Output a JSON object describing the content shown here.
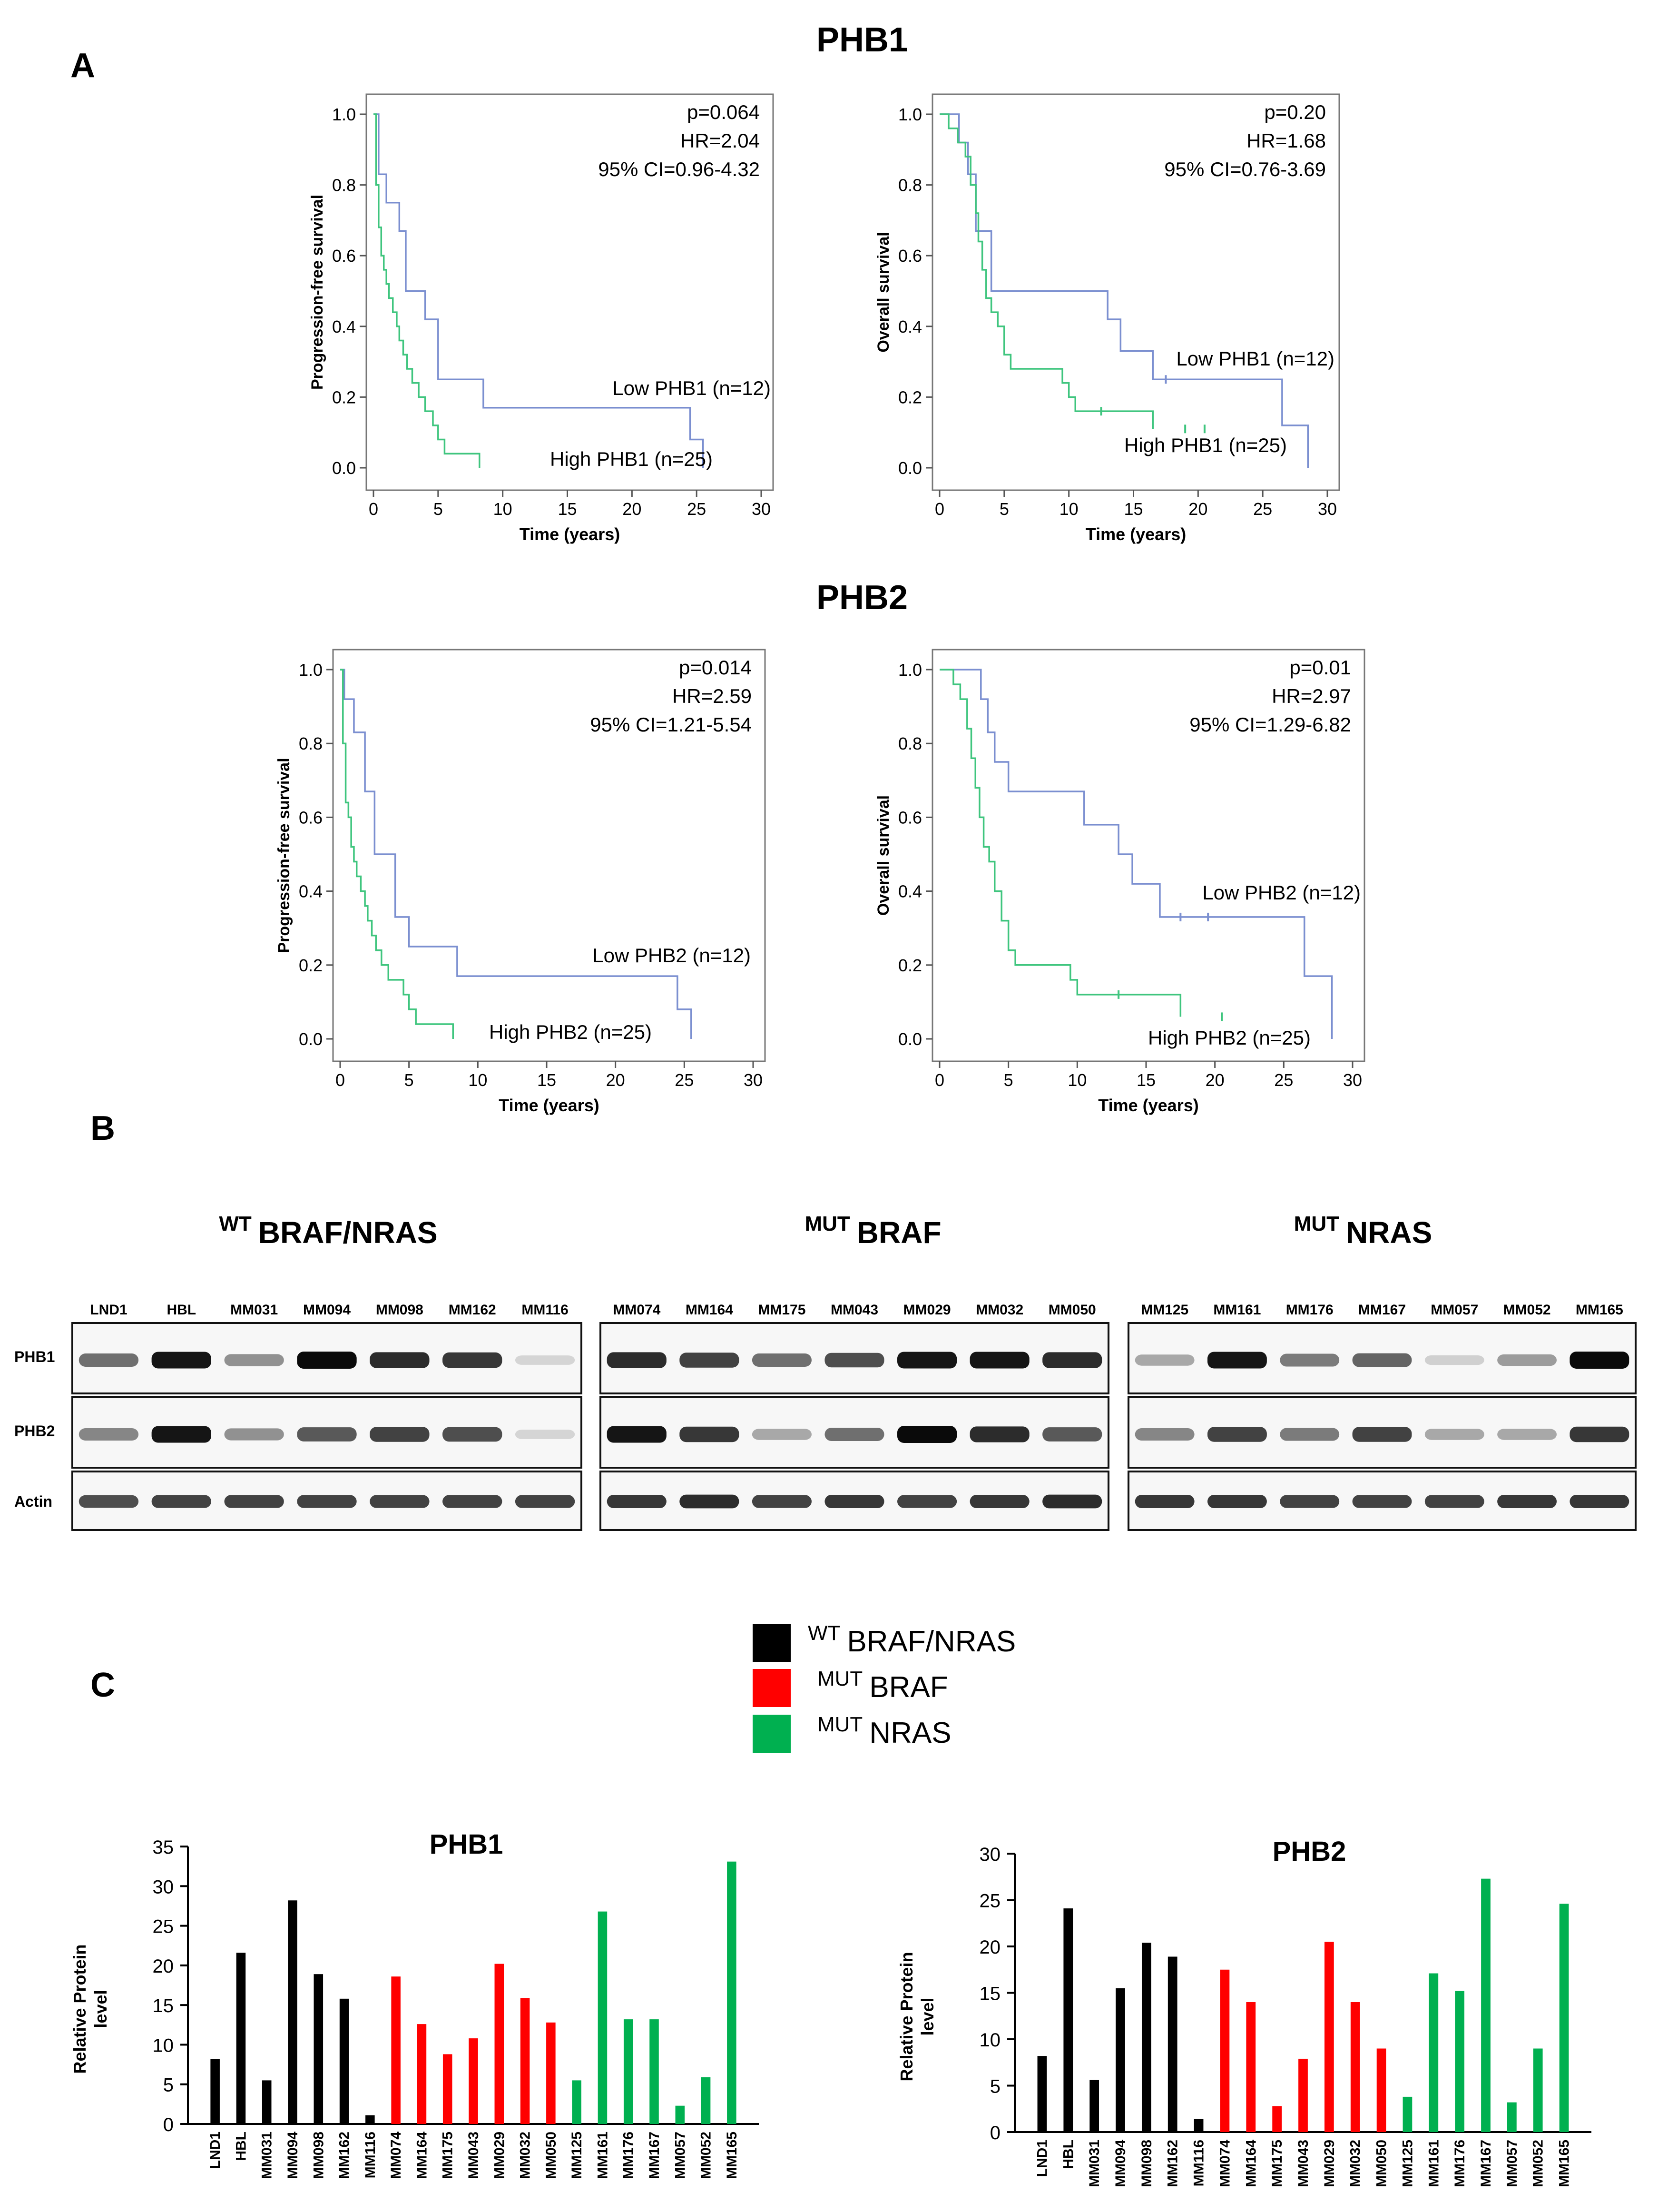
{
  "panels": {
    "A": "A",
    "B": "B",
    "C": "C"
  },
  "section_titles": {
    "phb1": "PHB1",
    "phb2": "PHB2"
  },
  "colors": {
    "low": "#7b8fd0",
    "high": "#3fc57e",
    "wt": "#000000",
    "mut_braf": "#ff0000",
    "mut_nras": "#00b050"
  },
  "chart_data": [
    {
      "id": "km_phb1_pfs",
      "type": "line",
      "title": "",
      "xlabel": "Time (years)",
      "ylabel": "Progression-free survival",
      "xlim": [
        0,
        30
      ],
      "ylim": [
        0,
        1
      ],
      "xticks": [
        0,
        5,
        10,
        15,
        20,
        25,
        30
      ],
      "yticks": [
        "0.0",
        "0.2",
        "0.4",
        "0.6",
        "0.8",
        "1.0"
      ],
      "stats": [
        "p=0.064",
        "HR=2.04",
        "95% CI=0.96-4.32"
      ],
      "series": [
        {
          "name": "Low PHB1 (n=12)",
          "color": "#7b8fd0",
          "x": [
            0,
            0.4,
            1,
            2,
            2.5,
            4,
            5,
            8.5,
            24.5,
            25.5
          ],
          "y": [
            1.0,
            0.83,
            0.75,
            0.67,
            0.5,
            0.42,
            0.25,
            0.17,
            0.08,
            0.0
          ],
          "censor": []
        },
        {
          "name": "High PHB1 (n=25)",
          "color": "#3fc57e",
          "x": [
            0,
            0.2,
            0.4,
            0.6,
            0.8,
            1.0,
            1.2,
            1.5,
            1.8,
            2.0,
            2.3,
            2.6,
            3.0,
            3.5,
            4.0,
            4.6,
            5.0,
            5.5,
            8.2
          ],
          "y": [
            1.0,
            0.8,
            0.68,
            0.6,
            0.56,
            0.52,
            0.48,
            0.44,
            0.4,
            0.36,
            0.32,
            0.28,
            0.24,
            0.2,
            0.16,
            0.12,
            0.08,
            0.04,
            0.0
          ],
          "censor": []
        }
      ]
    },
    {
      "id": "km_phb1_os",
      "type": "line",
      "title": "",
      "xlabel": "Time (years)",
      "ylabel": "Overall survival",
      "xlim": [
        0,
        30
      ],
      "ylim": [
        0,
        1
      ],
      "xticks": [
        0,
        5,
        10,
        15,
        20,
        25,
        30
      ],
      "yticks": [
        "0.0",
        "0.2",
        "0.4",
        "0.6",
        "0.8",
        "1.0"
      ],
      "stats": [
        "p=0.20",
        "HR=1.68",
        "95% CI=0.76-3.69"
      ],
      "series": [
        {
          "name": "Low PHB1 (n=12)",
          "color": "#7b8fd0",
          "x": [
            0,
            1.5,
            2.2,
            2.8,
            4,
            13,
            14,
            16.5,
            26.5,
            28.5
          ],
          "y": [
            1.0,
            0.92,
            0.83,
            0.67,
            0.5,
            0.42,
            0.33,
            0.25,
            0.12,
            0.0
          ],
          "censor": [
            17.5
          ]
        },
        {
          "name": "High PHB1 (n=25)",
          "color": "#3fc57e",
          "x": [
            0,
            0.7,
            1.4,
            2.0,
            2.4,
            2.8,
            3.0,
            3.3,
            3.6,
            4.0,
            4.5,
            5.0,
            5.5,
            9.5,
            10.0,
            10.5,
            16.5
          ],
          "y": [
            1.0,
            0.96,
            0.92,
            0.88,
            0.8,
            0.72,
            0.64,
            0.56,
            0.48,
            0.44,
            0.4,
            0.32,
            0.28,
            0.24,
            0.2,
            0.16,
            0.11
          ],
          "censor": [
            12.5,
            19,
            20.5
          ]
        }
      ]
    },
    {
      "id": "km_phb2_pfs",
      "type": "line",
      "title": "",
      "xlabel": "Time (years)",
      "ylabel": "Progression-free survival",
      "xlim": [
        0,
        30
      ],
      "ylim": [
        0,
        1
      ],
      "xticks": [
        0,
        5,
        10,
        15,
        20,
        25,
        30
      ],
      "yticks": [
        "0.0",
        "0.2",
        "0.4",
        "0.6",
        "0.8",
        "1.0"
      ],
      "stats": [
        "p=0.014",
        "HR=2.59",
        "95% CI=1.21-5.54"
      ],
      "series": [
        {
          "name": "Low PHB2 (n=12)",
          "color": "#7b8fd0",
          "x": [
            0,
            0.3,
            1.0,
            1.8,
            2.5,
            4.0,
            5.0,
            8.5,
            24.5,
            25.5
          ],
          "y": [
            1.0,
            0.92,
            0.83,
            0.67,
            0.5,
            0.33,
            0.25,
            0.17,
            0.08,
            0.0
          ],
          "censor": []
        },
        {
          "name": "High PHB2 (n=25)",
          "color": "#3fc57e",
          "x": [
            0,
            0.2,
            0.4,
            0.6,
            0.8,
            1.0,
            1.2,
            1.5,
            1.8,
            2.0,
            2.3,
            2.6,
            3.0,
            3.5,
            4.0,
            4.6,
            5.0,
            5.5,
            8.2
          ],
          "y": [
            1.0,
            0.8,
            0.64,
            0.6,
            0.52,
            0.48,
            0.44,
            0.4,
            0.36,
            0.32,
            0.28,
            0.24,
            0.2,
            0.16,
            0.16,
            0.12,
            0.08,
            0.04,
            0.0
          ],
          "censor": []
        }
      ]
    },
    {
      "id": "km_phb2_os",
      "type": "line",
      "title": "",
      "xlabel": "Time (years)",
      "ylabel": "Overall survival",
      "xlim": [
        0,
        30
      ],
      "ylim": [
        0,
        1
      ],
      "xticks": [
        0,
        5,
        10,
        15,
        20,
        25,
        30
      ],
      "yticks": [
        "0.0",
        "0.2",
        "0.4",
        "0.6",
        "0.8",
        "1.0"
      ],
      "stats": [
        "p=0.01",
        "HR=2.97",
        "95% CI=1.29-6.82"
      ],
      "series": [
        {
          "name": "Low PHB2 (n=12)",
          "color": "#7b8fd0",
          "x": [
            0,
            3.0,
            3.5,
            4.0,
            5.0,
            10.5,
            13.0,
            14.0,
            16.0,
            26.5,
            28.5
          ],
          "y": [
            1.0,
            0.92,
            0.83,
            0.75,
            0.67,
            0.58,
            0.5,
            0.42,
            0.33,
            0.17,
            0.0
          ],
          "censor": [
            17.5,
            19.5
          ]
        },
        {
          "name": "High PHB2 (n=25)",
          "color": "#3fc57e",
          "x": [
            0,
            1.0,
            1.5,
            2.0,
            2.3,
            2.6,
            2.9,
            3.2,
            3.6,
            4.0,
            4.5,
            5.0,
            5.5,
            9.5,
            10.0,
            17.5
          ],
          "y": [
            1.0,
            0.96,
            0.92,
            0.84,
            0.76,
            0.68,
            0.6,
            0.52,
            0.48,
            0.4,
            0.32,
            0.24,
            0.2,
            0.16,
            0.12,
            0.06
          ],
          "censor": [
            13,
            20.5
          ]
        }
      ]
    },
    {
      "id": "bar_phb1",
      "type": "bar",
      "title": "PHB1",
      "xlabel": "",
      "ylabel": "Relative Protein level",
      "ylim": [
        0,
        35
      ],
      "yticks": [
        0,
        5,
        10,
        15,
        20,
        25,
        30,
        35
      ],
      "categories": [
        "LND1",
        "HBL",
        "MM031",
        "MM094",
        "MM098",
        "MM162",
        "MM116",
        "MM074",
        "MM164",
        "MM175",
        "MM043",
        "MM029",
        "MM032",
        "MM050",
        "MM125",
        "MM161",
        "MM176",
        "MM167",
        "MM057",
        "MM052",
        "MM165"
      ],
      "groups": [
        "wt",
        "wt",
        "wt",
        "wt",
        "wt",
        "wt",
        "wt",
        "braf",
        "braf",
        "braf",
        "braf",
        "braf",
        "braf",
        "braf",
        "nras",
        "nras",
        "nras",
        "nras",
        "nras",
        "nras",
        "nras"
      ],
      "values": [
        8.2,
        21.6,
        5.5,
        28.2,
        18.9,
        15.8,
        1.1,
        18.6,
        12.6,
        8.8,
        10.8,
        20.2,
        15.9,
        12.8,
        5.5,
        26.8,
        13.2,
        13.2,
        2.3,
        5.9,
        33.1
      ]
    },
    {
      "id": "bar_phb2",
      "type": "bar",
      "title": "PHB2",
      "xlabel": "",
      "ylabel": "Relative Protein level",
      "ylim": [
        0,
        30
      ],
      "yticks": [
        0,
        5,
        10,
        15,
        20,
        25,
        30
      ],
      "categories": [
        "LND1",
        "HBL",
        "MM031",
        "MM094",
        "MM098",
        "MM162",
        "MM116",
        "MM074",
        "MM164",
        "MM175",
        "MM043",
        "MM029",
        "MM032",
        "MM050",
        "MM125",
        "MM161",
        "MM176",
        "MM167",
        "MM057",
        "MM052",
        "MM165"
      ],
      "groups": [
        "wt",
        "wt",
        "wt",
        "wt",
        "wt",
        "wt",
        "wt",
        "braf",
        "braf",
        "braf",
        "braf",
        "braf",
        "braf",
        "braf",
        "nras",
        "nras",
        "nras",
        "nras",
        "nras",
        "nras",
        "nras"
      ],
      "values": [
        8.2,
        24.1,
        5.6,
        15.5,
        20.4,
        18.9,
        1.4,
        17.5,
        14.0,
        2.8,
        7.9,
        20.5,
        14.0,
        9.0,
        3.8,
        17.1,
        15.2,
        27.3,
        3.2,
        9.0,
        24.6
      ]
    }
  ],
  "blots": {
    "row_labels": [
      "PHB1",
      "PHB2",
      "Actin"
    ],
    "groups": [
      {
        "sup": "WT",
        "title": "BRAF/NRAS",
        "lanes": [
          "LND1",
          "HBL",
          "MM031",
          "MM094",
          "MM098",
          "MM162",
          "MM116"
        ],
        "intensity": {
          "PHB1": [
            0.55,
            0.95,
            0.4,
            1.0,
            0.85,
            0.8,
            0.1
          ],
          "PHB2": [
            0.45,
            0.95,
            0.4,
            0.65,
            0.75,
            0.7,
            0.1
          ],
          "Actin": [
            0.7,
            0.75,
            0.75,
            0.75,
            0.75,
            0.75,
            0.75
          ]
        }
      },
      {
        "sup": "MUT",
        "title": "BRAF",
        "lanes": [
          "MM074",
          "MM164",
          "MM175",
          "MM043",
          "MM029",
          "MM032",
          "MM050"
        ],
        "intensity": {
          "PHB1": [
            0.85,
            0.75,
            0.55,
            0.7,
            0.95,
            0.95,
            0.85
          ],
          "PHB2": [
            0.95,
            0.8,
            0.3,
            0.55,
            1.0,
            0.85,
            0.65
          ],
          "Actin": [
            0.8,
            0.85,
            0.75,
            0.8,
            0.75,
            0.8,
            0.85
          ]
        }
      },
      {
        "sup": "MUT",
        "title": "NRAS",
        "lanes": [
          "MM125",
          "MM161",
          "MM176",
          "MM167",
          "MM057",
          "MM052",
          "MM165"
        ],
        "intensity": {
          "PHB1": [
            0.3,
            0.95,
            0.5,
            0.6,
            0.12,
            0.35,
            1.0
          ],
          "PHB2": [
            0.45,
            0.75,
            0.5,
            0.75,
            0.3,
            0.3,
            0.8
          ],
          "Actin": [
            0.8,
            0.8,
            0.75,
            0.75,
            0.75,
            0.8,
            0.8
          ]
        }
      }
    ]
  },
  "legend": [
    {
      "sup": "WT",
      "label": "BRAF/NRAS",
      "color": "#000000"
    },
    {
      "sup": "MUT",
      "label": "BRAF",
      "color": "#ff0000"
    },
    {
      "sup": "MUT",
      "label": "NRAS",
      "color": "#00b050"
    }
  ]
}
